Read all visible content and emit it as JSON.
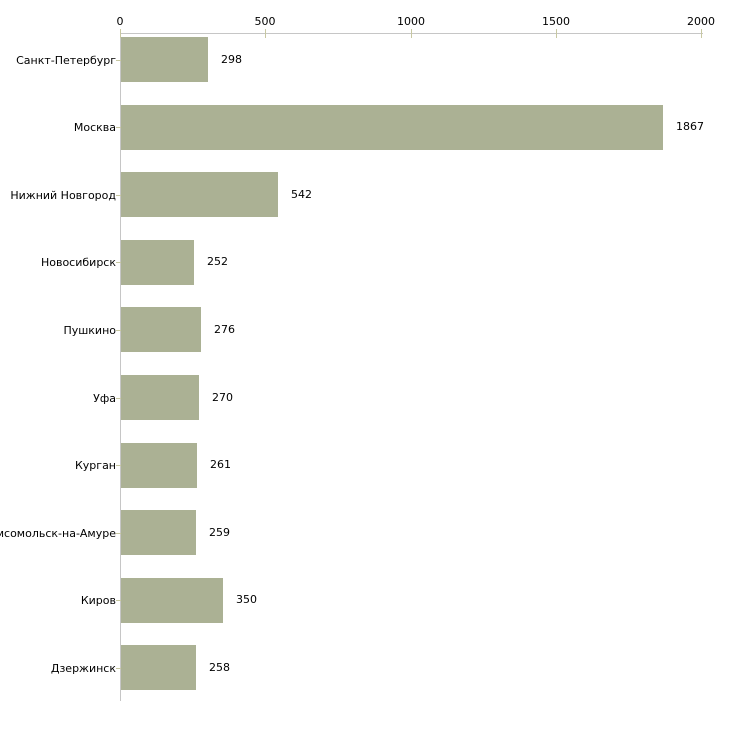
{
  "chart_data": {
    "type": "bar",
    "orientation": "horizontal",
    "categories": [
      "Санкт-Петербург",
      "Москва",
      "Нижний Новгород",
      "Новосибирск",
      "Пушкино",
      "Уфа",
      "Курган",
      "Комсомольск-на-Амуре",
      "Киров",
      "Дзержинск"
    ],
    "values": [
      298,
      1867,
      542,
      252,
      276,
      270,
      261,
      259,
      350,
      258
    ],
    "x_ticks": [
      0,
      500,
      1000,
      1500,
      2000
    ],
    "xlim": [
      0,
      2000
    ],
    "grid": false,
    "value_labels": true,
    "legend": "none",
    "axis_position": "top",
    "colors": {
      "bar": "#abb194",
      "axis_line": "#c6c6c6",
      "tick_mark": "#c8c8a2",
      "text": "#000000",
      "background": "#ffffff"
    }
  }
}
